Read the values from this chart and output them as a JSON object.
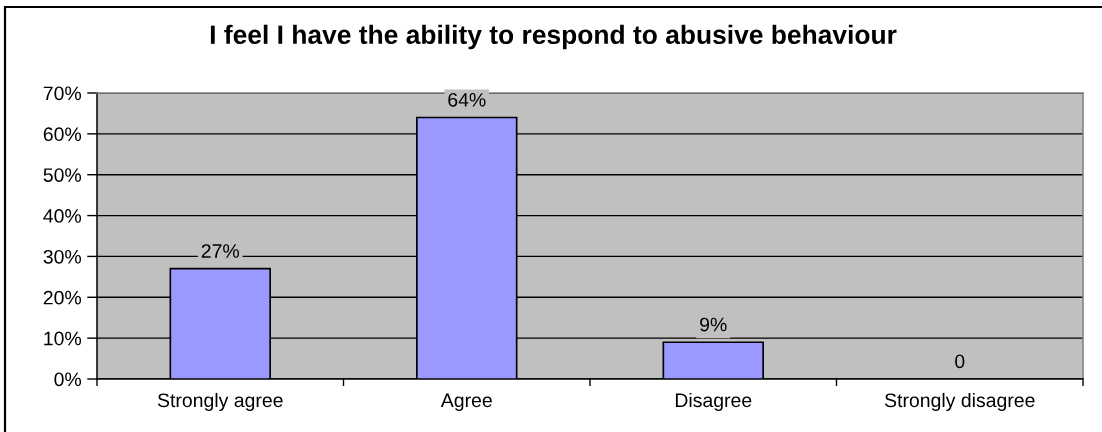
{
  "chart_data": {
    "type": "bar",
    "title": "I feel I have the ability to respond to abusive behaviour",
    "categories": [
      "Strongly agree",
      "Agree",
      "Disagree",
      "Strongly disagree"
    ],
    "values": [
      27,
      64,
      9,
      0
    ],
    "color": "#9999ff",
    "value_labels": [
      "27%",
      "64%",
      "9%",
      "0"
    ],
    "ylim": [
      0,
      70
    ],
    "yticks": [
      {
        "value": 0,
        "label": "0%"
      },
      {
        "value": 10,
        "label": "10%"
      },
      {
        "value": 20,
        "label": "20%"
      },
      {
        "value": 30,
        "label": "30%"
      },
      {
        "value": 40,
        "label": "40%"
      },
      {
        "value": 50,
        "label": "50%"
      },
      {
        "value": 60,
        "label": "60%"
      },
      {
        "value": 70,
        "label": "70%"
      }
    ],
    "grid": "y"
  }
}
